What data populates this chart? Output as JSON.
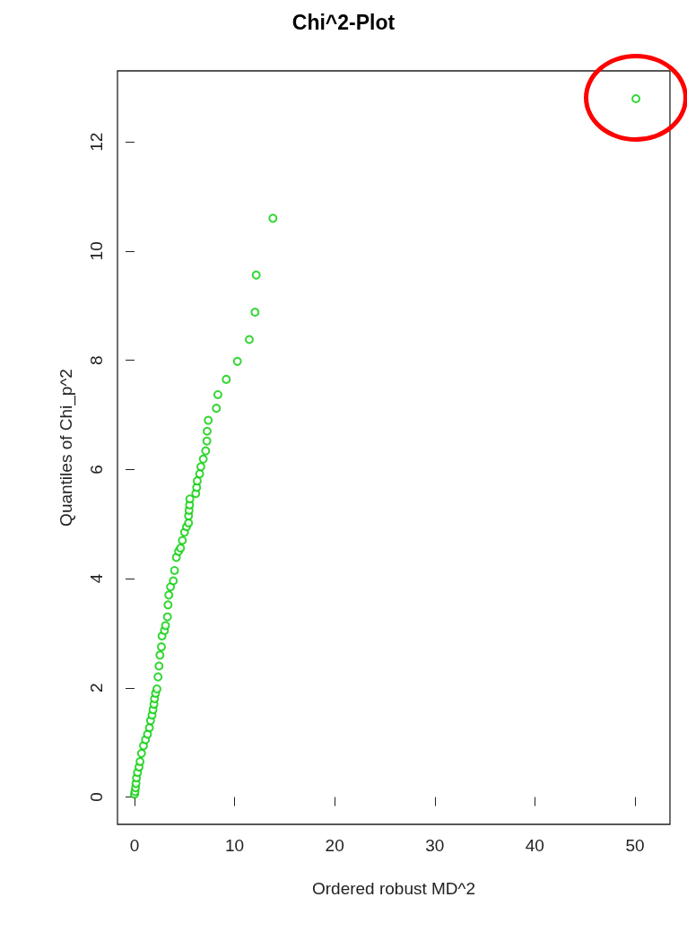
{
  "chart_data": {
    "type": "scatter",
    "title": "Chi^2-Plot",
    "xlabel": "Ordered robust MD^2",
    "ylabel": "Quantiles of Chi_p^2",
    "x": [
      0.0,
      0.05,
      0.1,
      0.15,
      0.2,
      0.3,
      0.45,
      0.55,
      0.7,
      0.9,
      1.1,
      1.3,
      1.49,
      1.6,
      1.75,
      1.85,
      1.94,
      2.0,
      2.1,
      2.24,
      2.35,
      2.45,
      2.54,
      2.69,
      2.75,
      2.99,
      3.1,
      3.29,
      3.35,
      3.43,
      3.6,
      3.88,
      4.0,
      4.18,
      4.4,
      4.6,
      4.78,
      5.0,
      5.2,
      5.4,
      5.4,
      5.45,
      5.5,
      5.53,
      6.12,
      6.21,
      6.27,
      6.51,
      6.63,
      6.87,
      7.11,
      7.23,
      7.26,
      7.37,
      8.18,
      8.33,
      9.17,
      10.28,
      11.47,
      12.04,
      12.16,
      13.83,
      50.1
    ],
    "values": [
      0.05,
      0.1,
      0.17,
      0.25,
      0.35,
      0.45,
      0.55,
      0.65,
      0.8,
      0.94,
      1.05,
      1.15,
      1.27,
      1.4,
      1.5,
      1.6,
      1.7,
      1.8,
      1.9,
      1.98,
      2.2,
      2.4,
      2.6,
      2.75,
      2.95,
      3.05,
      3.14,
      3.3,
      3.52,
      3.7,
      3.85,
      3.96,
      4.15,
      4.39,
      4.5,
      4.56,
      4.7,
      4.85,
      4.95,
      5.02,
      5.15,
      5.25,
      5.35,
      5.46,
      5.56,
      5.67,
      5.79,
      5.92,
      6.05,
      6.19,
      6.34,
      6.52,
      6.7,
      6.9,
      7.12,
      7.37,
      7.65,
      7.98,
      8.38,
      8.88,
      9.56,
      10.6,
      12.79
    ],
    "color": "#00cd00",
    "marker": "circle",
    "grid": false,
    "xlim": [
      -1.7,
      53.5
    ],
    "ylim": [
      -0.5,
      13.3
    ],
    "xticks": [
      0,
      10,
      20,
      30,
      40,
      50
    ],
    "yticks": [
      0,
      2,
      4,
      6,
      8,
      10,
      12
    ]
  }
}
